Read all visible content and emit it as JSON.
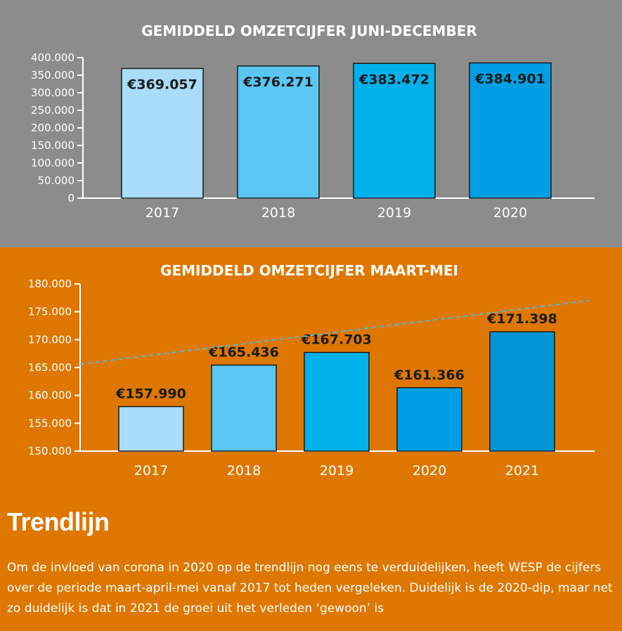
{
  "chart_data": [
    {
      "type": "bar",
      "title": "GEMIDDELD OMZETCIJFER JUNI-DECEMBER",
      "categories": [
        "2017",
        "2018",
        "2019",
        "2020"
      ],
      "values": [
        369057,
        376271,
        383472,
        384901
      ],
      "data_labels": [
        "€369.057",
        "€376.271",
        "€383.472",
        "€384.901"
      ],
      "ylim": [
        0,
        400000
      ],
      "yticks": [
        0,
        50000,
        100000,
        150000,
        200000,
        250000,
        300000,
        350000,
        400000
      ],
      "ytick_labels": [
        "0",
        "50.000",
        "100.000",
        "150.000",
        "200.000",
        "250.000",
        "300.000",
        "350.000",
        "400.000"
      ],
      "xlabel": "",
      "ylabel": "",
      "grid": false,
      "colors": [
        "#a8dcf7",
        "#5ac6f2",
        "#00b1ec",
        "#009fe3"
      ],
      "background": "#8c8c8c"
    },
    {
      "type": "bar",
      "title": "GEMIDDELD OMZETCIJFER MAART-MEI",
      "categories": [
        "2017",
        "2018",
        "2019",
        "2020",
        "2021"
      ],
      "values": [
        157990,
        165436,
        167703,
        161366,
        171398
      ],
      "data_labels": [
        "€157.990",
        "€165.436",
        "€167.703",
        "€161.366",
        "€171.398"
      ],
      "ylim": [
        150000,
        180000
      ],
      "yticks": [
        150000,
        155000,
        160000,
        165000,
        170000,
        175000,
        180000
      ],
      "ytick_labels": [
        "150.000",
        "155.000",
        "160.000",
        "165.000",
        "170.000",
        "175.000",
        "180.000"
      ],
      "xlabel": "",
      "ylabel": "",
      "grid": false,
      "trendline": {
        "style": "dashed",
        "color": "#5bb5e0",
        "y_start": 165600,
        "y_end": 177000
      },
      "colors": [
        "#a8dcf7",
        "#5ac6f2",
        "#00b1ec",
        "#009fe3",
        "#0096d6"
      ],
      "background": "#dd7700"
    }
  ],
  "article": {
    "heading": "Trendlijn",
    "body": "Om de invloed van corona in 2020 op de trendlijn nog eens te verduidelijken, heeft WESP de cijfers over de periode maart-april-mei vanaf 2017 tot heden vergeleken. Duidelijk is de 2020-dip, maar net zo duidelijk is dat in 2021 de groei uit het verleden ‘gewoon’ is"
  }
}
